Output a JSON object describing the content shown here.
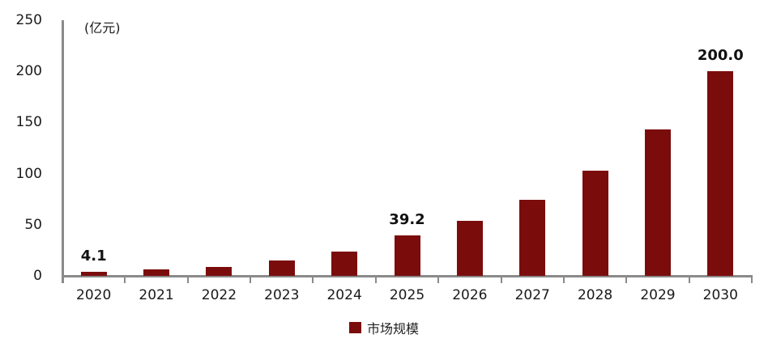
{
  "chart_data": {
    "type": "bar",
    "title": "",
    "unit_label": "(亿元)",
    "categories": [
      "2020",
      "2021",
      "2022",
      "2023",
      "2024",
      "2025",
      "2026",
      "2027",
      "2028",
      "2029",
      "2030"
    ],
    "values": [
      4.1,
      6,
      9,
      15,
      24,
      39.2,
      54,
      74,
      103,
      143,
      200
    ],
    "data_labels": [
      "4.1",
      "",
      "",
      "",
      "",
      "39.2",
      "",
      "",
      "",
      "",
      "200.0"
    ],
    "series": [
      {
        "name": "市场规模",
        "values": [
          4.1,
          6,
          9,
          15,
          24,
          39.2,
          54,
          74,
          103,
          143,
          200
        ]
      }
    ],
    "xlabel": "",
    "ylabel": "(亿元)",
    "ylim": [
      0,
      250
    ],
    "yticks": [
      0,
      50,
      100,
      150,
      200,
      250
    ],
    "grid": false,
    "legend_position": "bottom",
    "bar_color": "#7B0C0C",
    "axis_color": "#8a8a8a",
    "text_color": "#1a1a1a"
  },
  "legend": {
    "series_label": "市场规模"
  }
}
